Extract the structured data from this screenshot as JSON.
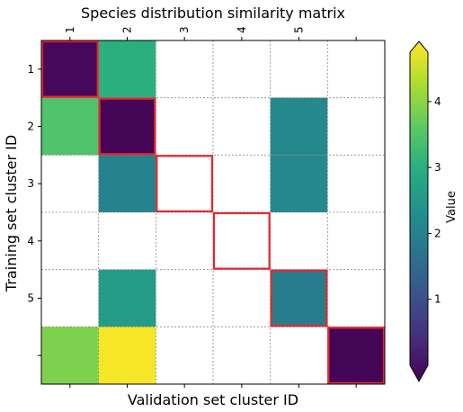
{
  "chart_data": {
    "type": "heatmap",
    "title": "Species distribution similarity matrix",
    "xlabel": "Validation set cluster ID",
    "ylabel": "Training set cluster ID",
    "x_tick_labels": [
      "1",
      "2",
      "3",
      "4",
      "5",
      ""
    ],
    "y_tick_labels": [
      "1",
      "2",
      "3",
      "4",
      "5",
      ""
    ],
    "x_axis_position": "top",
    "grid": true,
    "grid_color": "#888888",
    "highlight_color": "#e8262b",
    "colormap": "viridis",
    "colorbar": {
      "label": "Value",
      "vmin": 0.0,
      "vmax": 4.75,
      "ticks": [
        1,
        2,
        3,
        4
      ],
      "extend": "both"
    },
    "values": [
      [
        0.1,
        3.0,
        null,
        null,
        null,
        null
      ],
      [
        3.4,
        0.05,
        null,
        null,
        2.2,
        null
      ],
      [
        null,
        2.1,
        null,
        null,
        2.2,
        null
      ],
      [
        null,
        null,
        null,
        null,
        null,
        null
      ],
      [
        null,
        2.6,
        null,
        null,
        2.0,
        null
      ],
      [
        3.8,
        4.7,
        null,
        null,
        null,
        0.05
      ]
    ],
    "highlighted_cells": [
      [
        0,
        0
      ],
      [
        1,
        1
      ],
      [
        2,
        2
      ],
      [
        3,
        3
      ],
      [
        4,
        4
      ],
      [
        5,
        5
      ]
    ]
  }
}
